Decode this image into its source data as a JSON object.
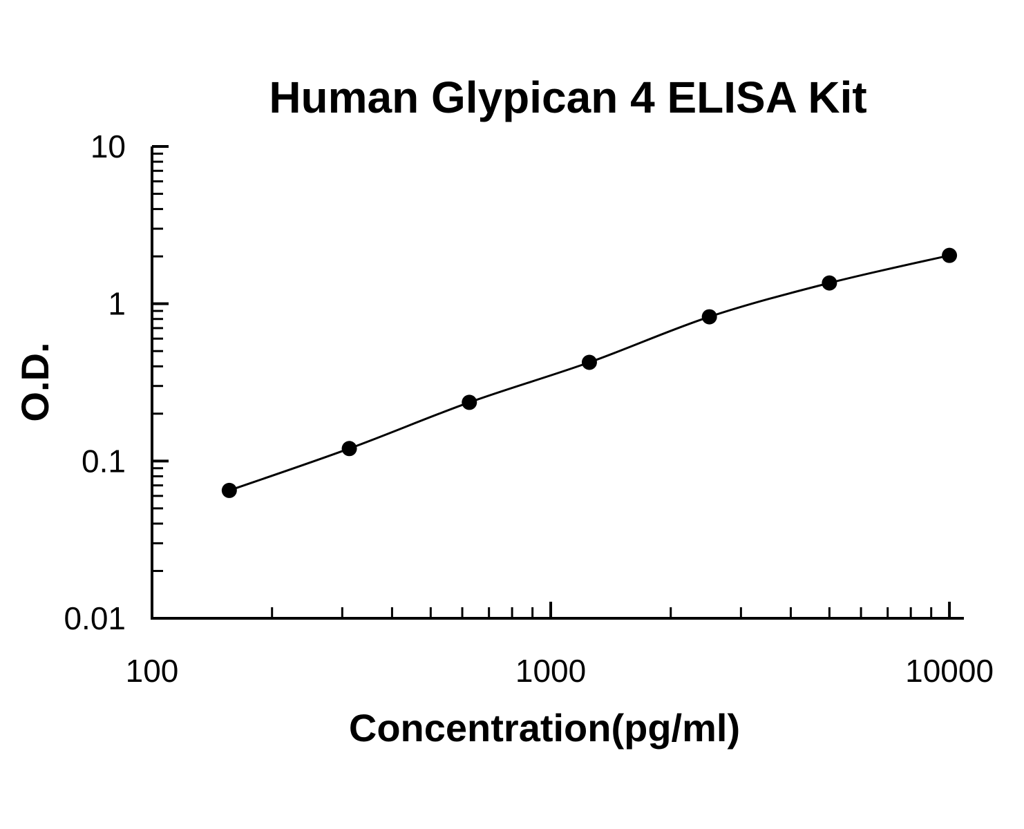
{
  "chart_data": {
    "type": "scatter",
    "title": "Human Glypican 4 ELISA Kit",
    "x_label": "Concentration(pg/ml)",
    "y_label": "O.D.",
    "x": [
      156.25,
      312.5,
      625,
      1250,
      2500,
      5000,
      10000
    ],
    "series": [
      {
        "values": [
          0.065,
          0.12,
          0.236,
          0.424,
          0.826,
          1.355,
          2.03
        ],
        "color": "#000000"
      }
    ],
    "x_log": true,
    "y_log": true,
    "xlim": [
      100,
      10870
    ],
    "ylim": [
      0.01,
      10
    ],
    "xticks": [
      100,
      1000,
      10000
    ],
    "yticks": [
      0.01,
      0.1,
      1,
      10
    ],
    "fit_curve": true,
    "grid": false
  }
}
